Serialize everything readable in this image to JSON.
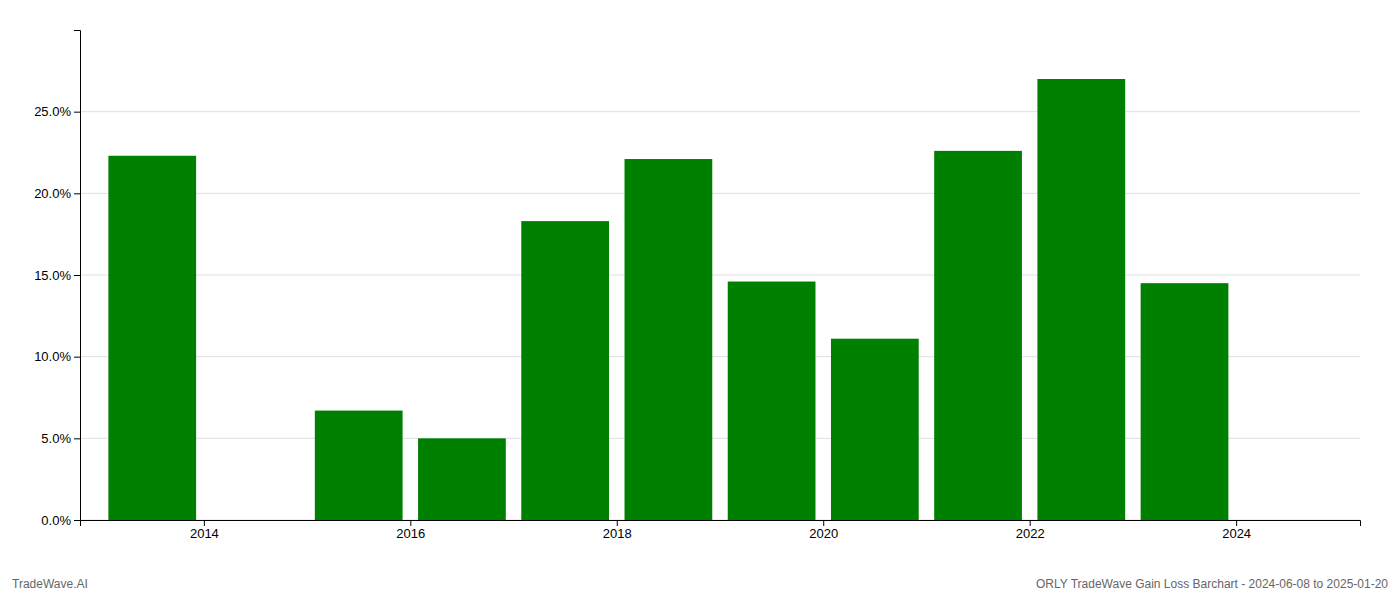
{
  "chart_data": {
    "type": "bar",
    "x": [
      2013.5,
      2015.5,
      2016.5,
      2017.5,
      2018.5,
      2019.5,
      2020.5,
      2021.5,
      2022.5,
      2023.5
    ],
    "values": [
      0.223,
      0.067,
      0.05,
      0.183,
      0.221,
      0.146,
      0.111,
      0.226,
      0.27,
      0.145
    ],
    "color": "#008000",
    "xlim": [
      2012.8,
      2025.2
    ],
    "xticks": [
      2014,
      2016,
      2018,
      2020,
      2022,
      2024
    ],
    "ylim": [
      0,
      0.3
    ],
    "yticks": [
      {
        "value": 0.0,
        "label": "0.0%"
      },
      {
        "value": 0.05,
        "label": "5.0%"
      },
      {
        "value": 0.1,
        "label": "10.0%"
      },
      {
        "value": 0.15,
        "label": "15.0%"
      },
      {
        "value": 0.2,
        "label": "20.0%"
      },
      {
        "value": 0.25,
        "label": "25.0%"
      }
    ],
    "grid": true,
    "annotations": [
      "TradeWave.AI",
      "ORLY TradeWave Gain Loss Barchart - 2024-06-08 to 2025-01-20"
    ]
  }
}
